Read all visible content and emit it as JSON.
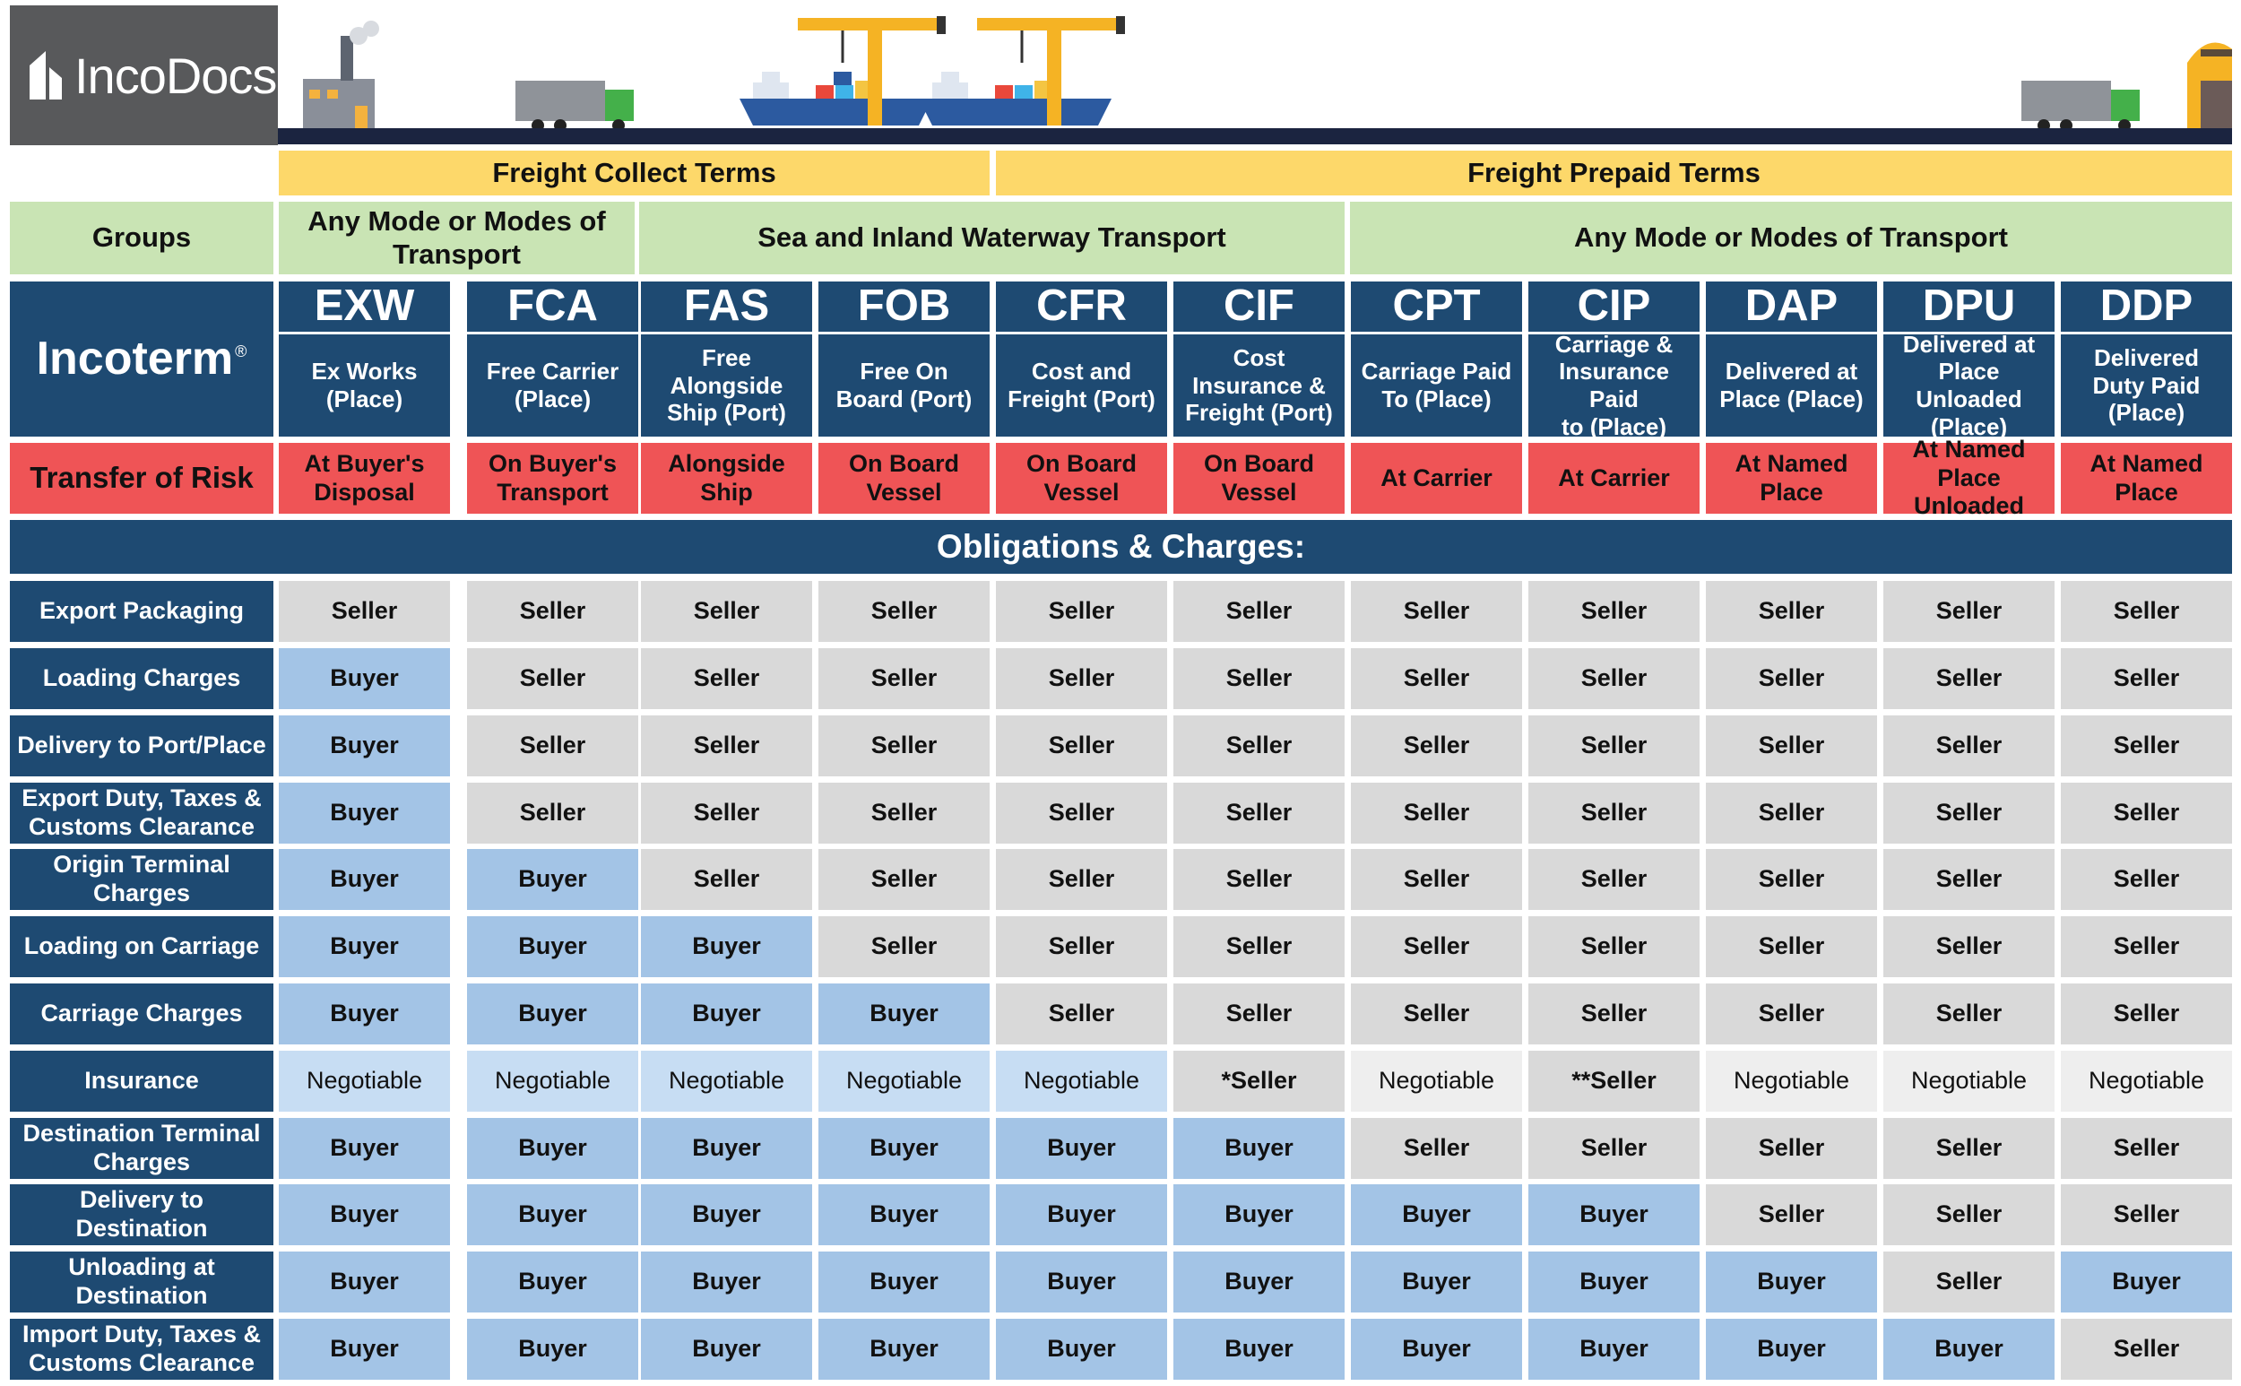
{
  "brand": {
    "logo_text": "IncoDocs"
  },
  "freight_terms": {
    "collect": "Freight Collect Terms",
    "prepaid": "Freight Prepaid Terms"
  },
  "groups": {
    "label": "Groups",
    "any_mode_1": "Any Mode or Modes of Transport",
    "sea": "Sea and Inland Waterway Transport",
    "any_mode_2": "Any Mode or Modes of Transport"
  },
  "incoterm_header": {
    "label": "Incoterm",
    "registered": "®"
  },
  "terms": [
    {
      "code": "EXW",
      "name_l1": "Ex Works",
      "name_l2": "(Place)",
      "name_l3": "",
      "risk": "At Buyer's Disposal"
    },
    {
      "code": "FCA",
      "name_l1": "Free Carrier",
      "name_l2": "(Place)",
      "name_l3": "",
      "risk": "On Buyer's Transport"
    },
    {
      "code": "FAS",
      "name_l1": "Free",
      "name_l2": "Alongside",
      "name_l3": "Ship (Port)",
      "risk": "Alongside Ship"
    },
    {
      "code": "FOB",
      "name_l1": "Free On",
      "name_l2": "Board (Port)",
      "name_l3": "",
      "risk": "On Board Vessel"
    },
    {
      "code": "CFR",
      "name_l1": "Cost and",
      "name_l2": "Freight (Port)",
      "name_l3": "",
      "risk": "On Board Vessel"
    },
    {
      "code": "CIF",
      "name_l1": "Cost",
      "name_l2": "Insurance &",
      "name_l3": "Freight (Port)",
      "risk": "On Board Vessel"
    },
    {
      "code": "CPT",
      "name_l1": "Carriage Paid",
      "name_l2": "To (Place)",
      "name_l3": "",
      "risk": "At Carrier"
    },
    {
      "code": "CIP",
      "name_l1": "Carriage &",
      "name_l2": "Insurance Paid",
      "name_l3": "to (Place)",
      "risk": "At Carrier"
    },
    {
      "code": "DAP",
      "name_l1": "Delivered at",
      "name_l2": "Place (Place)",
      "name_l3": "",
      "risk": "At Named Place"
    },
    {
      "code": "DPU",
      "name_l1": "Delivered at",
      "name_l2": "Place Unloaded",
      "name_l3": "(Place)",
      "risk": "At Named Place Unloaded"
    },
    {
      "code": "DDP",
      "name_l1": "Delivered",
      "name_l2": "Duty Paid",
      "name_l3": "(Place)",
      "risk": "At Named Place"
    }
  ],
  "risk_label": "Transfer of Risk",
  "obligations_title": "Obligations & Charges:",
  "obligations": [
    {
      "label": "Export Packaging",
      "values": [
        "Seller",
        "Seller",
        "Seller",
        "Seller",
        "Seller",
        "Seller",
        "Seller",
        "Seller",
        "Seller",
        "Seller",
        "Seller"
      ]
    },
    {
      "label": "Loading Charges",
      "values": [
        "Buyer",
        "Seller",
        "Seller",
        "Seller",
        "Seller",
        "Seller",
        "Seller",
        "Seller",
        "Seller",
        "Seller",
        "Seller"
      ]
    },
    {
      "label": "Delivery to Port/Place",
      "values": [
        "Buyer",
        "Seller",
        "Seller",
        "Seller",
        "Seller",
        "Seller",
        "Seller",
        "Seller",
        "Seller",
        "Seller",
        "Seller"
      ]
    },
    {
      "label": "Export Duty, Taxes & Customs Clearance",
      "values": [
        "Buyer",
        "Seller",
        "Seller",
        "Seller",
        "Seller",
        "Seller",
        "Seller",
        "Seller",
        "Seller",
        "Seller",
        "Seller"
      ]
    },
    {
      "label": "Origin Terminal Charges",
      "values": [
        "Buyer",
        "Buyer",
        "Seller",
        "Seller",
        "Seller",
        "Seller",
        "Seller",
        "Seller",
        "Seller",
        "Seller",
        "Seller"
      ]
    },
    {
      "label": "Loading on Carriage",
      "values": [
        "Buyer",
        "Buyer",
        "Buyer",
        "Seller",
        "Seller",
        "Seller",
        "Seller",
        "Seller",
        "Seller",
        "Seller",
        "Seller"
      ]
    },
    {
      "label": "Carriage Charges",
      "values": [
        "Buyer",
        "Buyer",
        "Buyer",
        "Buyer",
        "Seller",
        "Seller",
        "Seller",
        "Seller",
        "Seller",
        "Seller",
        "Seller"
      ]
    },
    {
      "label": "Insurance",
      "values": [
        "Negotiable",
        "Negotiable",
        "Negotiable",
        "Negotiable",
        "Negotiable",
        "*Seller",
        "Negotiable",
        "**Seller",
        "Negotiable",
        "Negotiable",
        "Negotiable"
      ]
    },
    {
      "label": "Destination Terminal Charges",
      "values": [
        "Buyer",
        "Buyer",
        "Buyer",
        "Buyer",
        "Buyer",
        "Buyer",
        "Seller",
        "Seller",
        "Seller",
        "Seller",
        "Seller"
      ]
    },
    {
      "label": "Delivery to Destination",
      "values": [
        "Buyer",
        "Buyer",
        "Buyer",
        "Buyer",
        "Buyer",
        "Buyer",
        "Buyer",
        "Buyer",
        "Seller",
        "Seller",
        "Seller"
      ]
    },
    {
      "label": "Unloading at Destination",
      "values": [
        "Buyer",
        "Buyer",
        "Buyer",
        "Buyer",
        "Buyer",
        "Buyer",
        "Buyer",
        "Buyer",
        "Buyer",
        "Seller",
        "Buyer"
      ]
    },
    {
      "label": "Import Duty, Taxes & Customs Clearance",
      "values": [
        "Buyer",
        "Buyer",
        "Buyer",
        "Buyer",
        "Buyer",
        "Buyer",
        "Buyer",
        "Buyer",
        "Buyer",
        "Buyer",
        "Seller"
      ]
    }
  ],
  "colors": {
    "navy": "#1e4a72",
    "seller": "#d9d9d9",
    "buyer": "#a3c4e6",
    "group_green": "#c9e4b4",
    "risk_red": "#ef5456",
    "freight_yellow": "#fdd86a"
  }
}
